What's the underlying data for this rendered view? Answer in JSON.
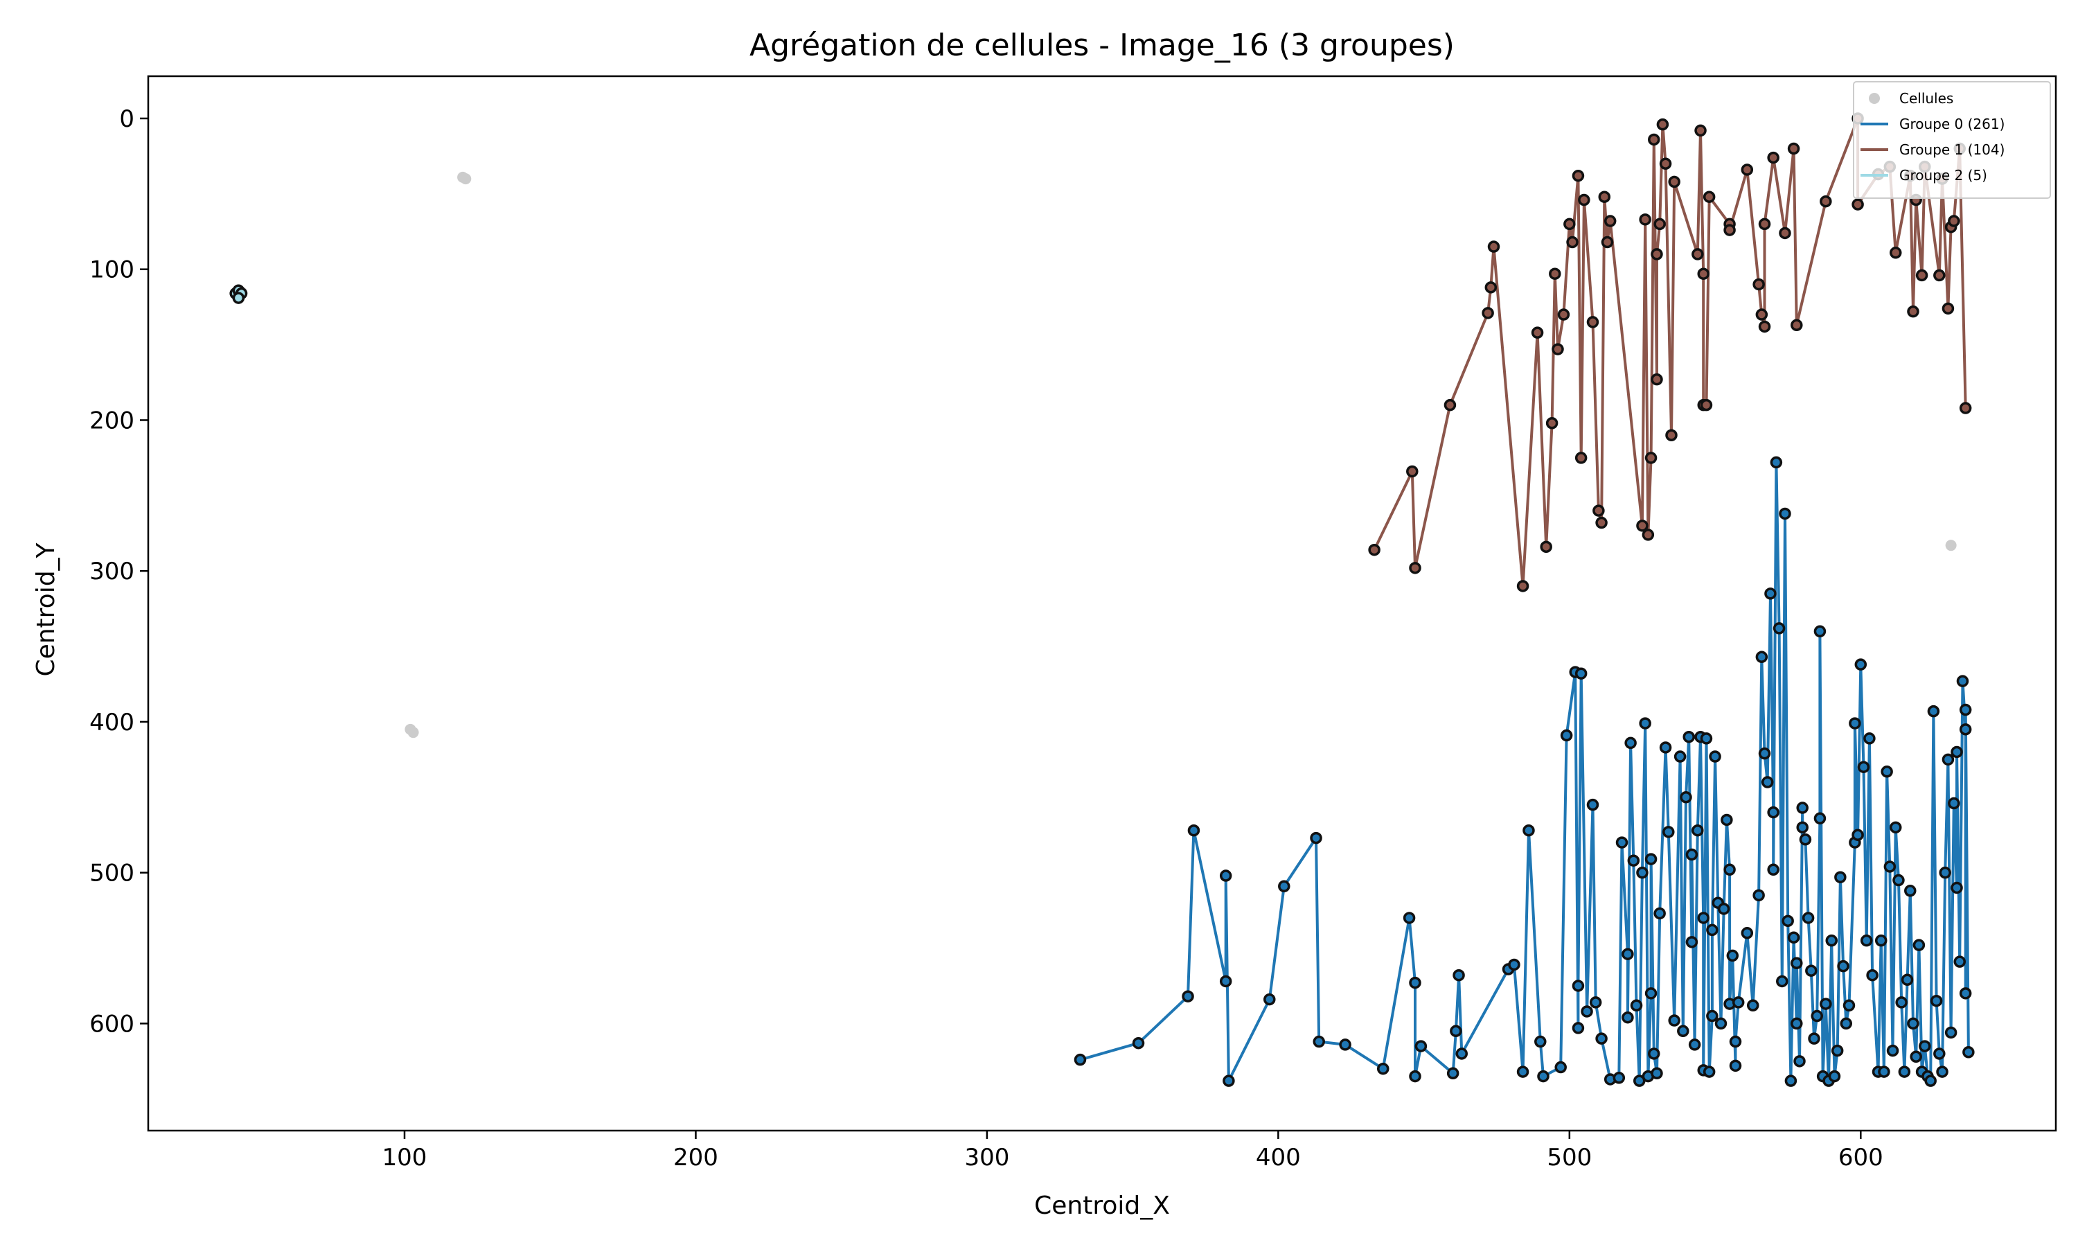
{
  "chart_data": {
    "type": "scatter",
    "title": "Agrégation de cellules - Image_16 (3 groupes)",
    "xlabel": "Centroid_X",
    "ylabel": "Centroid_Y",
    "xlim": [
      12,
      667
    ],
    "ylim": [
      671,
      -28
    ],
    "y_inverted": true,
    "grid": false,
    "legend_position": "top-right",
    "x_ticks": [
      100,
      200,
      300,
      400,
      500,
      600
    ],
    "y_ticks": [
      0,
      100,
      200,
      300,
      400,
      500,
      600
    ],
    "series": [
      {
        "name": "Cellules",
        "kind": "scatter",
        "color": "#cccccc",
        "points": [
          [
            120,
            39
          ],
          [
            121,
            40
          ],
          [
            102,
            405
          ],
          [
            103,
            407
          ],
          [
            631,
            283
          ],
          [
            43,
            117
          ],
          [
            44,
            115
          ]
        ]
      },
      {
        "name": "Groupe 0 (261)",
        "kind": "line",
        "color": "#1f77b4",
        "points": [
          [
            332,
            624
          ],
          [
            352,
            613
          ],
          [
            369,
            582
          ],
          [
            371,
            472
          ],
          [
            382,
            572
          ],
          [
            382,
            502
          ],
          [
            383,
            638
          ],
          [
            397,
            584
          ],
          [
            402,
            509
          ],
          [
            413,
            477
          ],
          [
            414,
            612
          ],
          [
            423,
            614
          ],
          [
            436,
            630
          ],
          [
            445,
            530
          ],
          [
            447,
            573
          ],
          [
            447,
            635
          ],
          [
            449,
            615
          ],
          [
            460,
            633
          ],
          [
            461,
            605
          ],
          [
            462,
            568
          ],
          [
            463,
            620
          ],
          [
            479,
            564
          ],
          [
            481,
            561
          ],
          [
            484,
            632
          ],
          [
            486,
            472
          ],
          [
            490,
            612
          ],
          [
            491,
            635
          ],
          [
            497,
            629
          ],
          [
            499,
            409
          ],
          [
            502,
            367
          ],
          [
            503,
            603
          ],
          [
            503,
            575
          ],
          [
            504,
            368
          ],
          [
            506,
            592
          ],
          [
            508,
            455
          ],
          [
            509,
            586
          ],
          [
            511,
            610
          ],
          [
            514,
            637
          ],
          [
            517,
            636
          ],
          [
            518,
            480
          ],
          [
            520,
            554
          ],
          [
            520,
            596
          ],
          [
            521,
            414
          ],
          [
            522,
            492
          ],
          [
            523,
            588
          ],
          [
            524,
            638
          ],
          [
            525,
            500
          ],
          [
            526,
            401
          ],
          [
            527,
            635
          ],
          [
            528,
            580
          ],
          [
            528,
            491
          ],
          [
            529,
            620
          ],
          [
            530,
            633
          ],
          [
            531,
            527
          ],
          [
            533,
            417
          ],
          [
            534,
            473
          ],
          [
            536,
            598
          ],
          [
            538,
            423
          ],
          [
            539,
            605
          ],
          [
            540,
            450
          ],
          [
            541,
            410
          ],
          [
            542,
            546
          ],
          [
            542,
            488
          ],
          [
            543,
            614
          ],
          [
            544,
            472
          ],
          [
            545,
            410
          ],
          [
            546,
            530
          ],
          [
            546,
            631
          ],
          [
            547,
            411
          ],
          [
            548,
            632
          ],
          [
            549,
            595
          ],
          [
            549,
            538
          ],
          [
            550,
            423
          ],
          [
            551,
            520
          ],
          [
            552,
            600
          ],
          [
            553,
            524
          ],
          [
            554,
            465
          ],
          [
            555,
            498
          ],
          [
            555,
            587
          ],
          [
            556,
            555
          ],
          [
            557,
            628
          ],
          [
            557,
            612
          ],
          [
            558,
            586
          ],
          [
            561,
            540
          ],
          [
            563,
            588
          ],
          [
            565,
            515
          ],
          [
            566,
            357
          ],
          [
            567,
            421
          ],
          [
            568,
            440
          ],
          [
            569,
            315
          ],
          [
            570,
            460
          ],
          [
            570,
            498
          ],
          [
            571,
            228
          ],
          [
            572,
            338
          ],
          [
            573,
            572
          ],
          [
            574,
            262
          ],
          [
            575,
            532
          ],
          [
            576,
            638
          ],
          [
            577,
            543
          ],
          [
            578,
            600
          ],
          [
            578,
            560
          ],
          [
            579,
            625
          ],
          [
            580,
            457
          ],
          [
            580,
            470
          ],
          [
            581,
            478
          ],
          [
            582,
            530
          ],
          [
            583,
            565
          ],
          [
            584,
            610
          ],
          [
            585,
            595
          ],
          [
            586,
            464
          ],
          [
            586,
            340
          ],
          [
            587,
            635
          ],
          [
            588,
            587
          ],
          [
            589,
            638
          ],
          [
            590,
            545
          ],
          [
            591,
            635
          ],
          [
            592,
            618
          ],
          [
            593,
            503
          ],
          [
            594,
            562
          ],
          [
            595,
            600
          ],
          [
            596,
            588
          ],
          [
            598,
            480
          ],
          [
            598,
            401
          ],
          [
            599,
            475
          ],
          [
            600,
            362
          ],
          [
            601,
            430
          ],
          [
            602,
            545
          ],
          [
            603,
            411
          ],
          [
            604,
            568
          ],
          [
            606,
            632
          ],
          [
            607,
            545
          ],
          [
            608,
            632
          ],
          [
            609,
            433
          ],
          [
            610,
            496
          ],
          [
            611,
            618
          ],
          [
            612,
            470
          ],
          [
            613,
            505
          ],
          [
            614,
            586
          ],
          [
            615,
            632
          ],
          [
            616,
            571
          ],
          [
            617,
            512
          ],
          [
            618,
            600
          ],
          [
            619,
            622
          ],
          [
            620,
            548
          ],
          [
            621,
            632
          ],
          [
            622,
            615
          ],
          [
            623,
            635
          ],
          [
            624,
            638
          ],
          [
            625,
            393
          ],
          [
            626,
            585
          ],
          [
            627,
            620
          ],
          [
            628,
            632
          ],
          [
            629,
            500
          ],
          [
            630,
            425
          ],
          [
            631,
            606
          ],
          [
            632,
            454
          ],
          [
            633,
            510
          ],
          [
            633,
            420
          ],
          [
            634,
            559
          ],
          [
            635,
            373
          ],
          [
            636,
            405
          ],
          [
            636,
            580
          ],
          [
            636,
            392
          ],
          [
            637,
            619
          ]
        ]
      },
      {
        "name": "Groupe 1 (104)",
        "kind": "line",
        "color": "#8c564b",
        "points": [
          [
            433,
            286
          ],
          [
            446,
            234
          ],
          [
            447,
            298
          ],
          [
            459,
            190
          ],
          [
            472,
            129
          ],
          [
            473,
            112
          ],
          [
            474,
            85
          ],
          [
            484,
            310
          ],
          [
            489,
            142
          ],
          [
            492,
            284
          ],
          [
            494,
            202
          ],
          [
            495,
            103
          ],
          [
            496,
            153
          ],
          [
            498,
            130
          ],
          [
            500,
            70
          ],
          [
            501,
            82
          ],
          [
            503,
            38
          ],
          [
            504,
            225
          ],
          [
            505,
            54
          ],
          [
            508,
            135
          ],
          [
            510,
            260
          ],
          [
            511,
            268
          ],
          [
            512,
            52
          ],
          [
            513,
            82
          ],
          [
            514,
            68
          ],
          [
            525,
            270
          ],
          [
            526,
            67
          ],
          [
            527,
            276
          ],
          [
            528,
            225
          ],
          [
            529,
            14
          ],
          [
            530,
            173
          ],
          [
            530,
            90
          ],
          [
            531,
            70
          ],
          [
            532,
            4
          ],
          [
            533,
            30
          ],
          [
            535,
            210
          ],
          [
            536,
            42
          ],
          [
            544,
            90
          ],
          [
            545,
            8
          ],
          [
            546,
            103
          ],
          [
            546,
            190
          ],
          [
            547,
            190
          ],
          [
            548,
            52
          ],
          [
            555,
            70
          ],
          [
            555,
            74
          ],
          [
            561,
            34
          ],
          [
            565,
            110
          ],
          [
            566,
            130
          ],
          [
            567,
            138
          ],
          [
            567,
            70
          ],
          [
            570,
            26
          ],
          [
            574,
            76
          ],
          [
            577,
            20
          ],
          [
            578,
            137
          ],
          [
            588,
            55
          ],
          [
            599,
            0
          ],
          [
            599,
            57
          ],
          [
            606,
            37
          ],
          [
            610,
            32
          ],
          [
            612,
            89
          ],
          [
            617,
            38
          ],
          [
            618,
            128
          ],
          [
            619,
            54
          ],
          [
            621,
            104
          ],
          [
            622,
            32
          ],
          [
            627,
            104
          ],
          [
            628,
            40
          ],
          [
            630,
            126
          ],
          [
            631,
            72
          ],
          [
            632,
            68
          ],
          [
            634,
            20
          ],
          [
            636,
            192
          ]
        ]
      },
      {
        "name": "Groupe 2 (5)",
        "kind": "line",
        "color": "#9edae5",
        "points": [
          [
            43,
            118
          ],
          [
            42,
            116
          ],
          [
            43,
            114
          ],
          [
            44,
            116
          ],
          [
            43,
            119
          ]
        ]
      }
    ]
  }
}
